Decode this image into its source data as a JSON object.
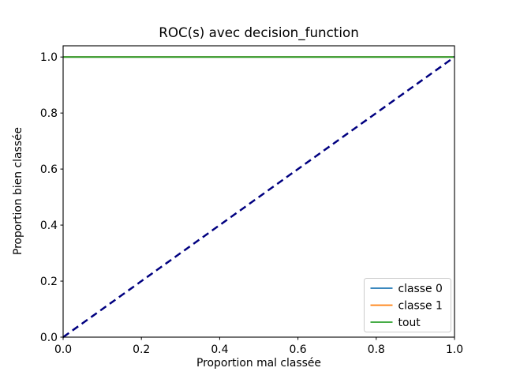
{
  "chart_data": {
    "type": "line",
    "title": "ROC(s) avec decision_function",
    "xlabel": "Proportion mal classée",
    "ylabel": "Proportion bien classée",
    "xlim": [
      0.0,
      1.0
    ],
    "ylim": [
      0.0,
      1.04
    ],
    "xticks": [
      0.0,
      0.2,
      0.4,
      0.6,
      0.8,
      1.0
    ],
    "yticks": [
      0.0,
      0.2,
      0.4,
      0.6,
      0.8,
      1.0
    ],
    "grid": false,
    "background": "#ffffff",
    "legend_position": "lower right",
    "series": [
      {
        "name": "classe 0",
        "color": "#1f77b4",
        "linestyle": "solid",
        "linewidth": 1.8,
        "in_legend": true,
        "x": [
          0.0,
          1.0
        ],
        "y": [
          1.0,
          1.0
        ]
      },
      {
        "name": "classe 1",
        "color": "#ff7f0e",
        "linestyle": "solid",
        "linewidth": 1.8,
        "in_legend": true,
        "x": [
          0.0,
          1.0
        ],
        "y": [
          1.0,
          1.0
        ]
      },
      {
        "name": "tout",
        "color": "#2ca02c",
        "linestyle": "solid",
        "linewidth": 1.8,
        "in_legend": true,
        "x": [
          0.0,
          1.0
        ],
        "y": [
          1.0,
          1.0
        ]
      },
      {
        "name": "diagonale",
        "color": "#000080",
        "linestyle": "dashed",
        "linewidth": 2.5,
        "in_legend": false,
        "x": [
          0.0,
          1.0
        ],
        "y": [
          0.0,
          1.0
        ]
      }
    ]
  }
}
